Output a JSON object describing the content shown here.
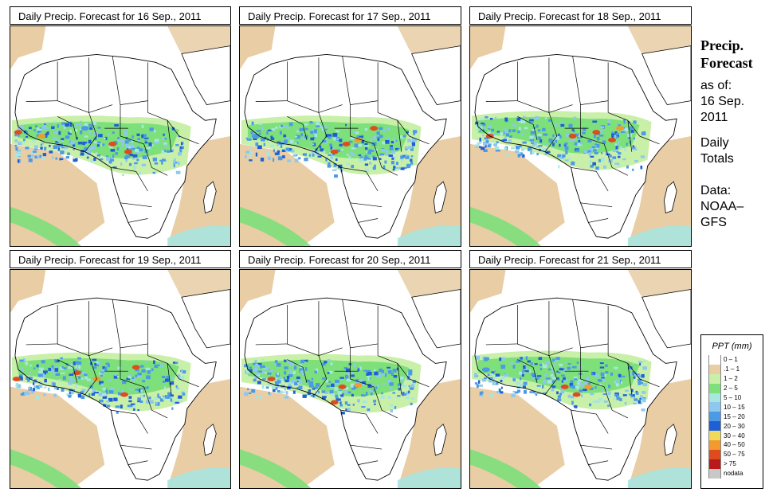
{
  "panels": [
    {
      "title": "Daily Precip. Forecast for  16 Sep., 2011"
    },
    {
      "title": "Daily Precip. Forecast for  17 Sep., 2011"
    },
    {
      "title": "Daily Precip. Forecast for  18 Sep., 2011"
    },
    {
      "title": "Daily Precip. Forecast for  19 Sep., 2011"
    },
    {
      "title": "Daily Precip. Forecast for  20 Sep., 2011"
    },
    {
      "title": "Daily Precip. Forecast for  21 Sep., 2011"
    }
  ],
  "sidebar": {
    "title_line1": "Precip.",
    "title_line2": "Forecast",
    "asof_line1": "as of:",
    "asof_line2": "16 Sep.",
    "asof_line3": "2011",
    "daily_line1": "Daily",
    "daily_line2": "Totals",
    "data_line1": "Data:",
    "data_line2": "NOAA–",
    "data_line3": "GFS"
  },
  "legend": {
    "title": "PPT (mm)",
    "items": [
      {
        "label": "0 – 1",
        "color": "#ffffff"
      },
      {
        "label": ".1 – 1",
        "color": "#e8cda5"
      },
      {
        "label": "1 – 2",
        "color": "#c8f0a8"
      },
      {
        "label": "2 – 5",
        "color": "#7de07a"
      },
      {
        "label": "5 – 10",
        "color": "#a8e6e0"
      },
      {
        "label": "10 – 15",
        "color": "#8ec8ee"
      },
      {
        "label": "15 – 20",
        "color": "#4b9ae6"
      },
      {
        "label": "20 – 30",
        "color": "#1f5fd6"
      },
      {
        "label": "30 – 40",
        "color": "#f0d85a"
      },
      {
        "label": "40 – 50",
        "color": "#f29a2e"
      },
      {
        "label": "50 – 75",
        "color": "#e04b1e"
      },
      {
        "label": "> 75",
        "color": "#b81a1a"
      },
      {
        "label": "nodata",
        "color": "#c8c8c8"
      }
    ]
  },
  "colors": {
    "tan": "#e8cda5",
    "light_green": "#c8f0a8",
    "green": "#7de07a",
    "cyan": "#a8e6e0",
    "light_blue": "#8ec8ee",
    "blue": "#4b9ae6",
    "dark_blue": "#1f5fd6",
    "orange": "#f29a2e",
    "red": "#e04b1e"
  }
}
